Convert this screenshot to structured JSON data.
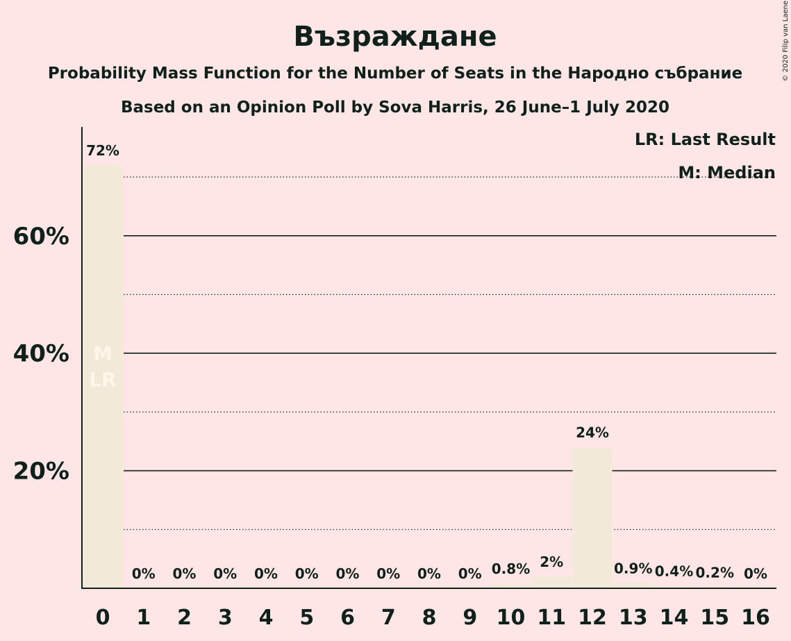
{
  "title": "Възраждане",
  "subtitle_line1": "Probability Mass Function for the Number of Seats in the Народно събрание",
  "subtitle_line2": "Based on an Opinion Poll by Sova Harris, 26 June–1 July 2020",
  "copyright": "© 2020 Filip van Laenen",
  "legend": {
    "last_result": "LR: Last Result",
    "median": "M: Median"
  },
  "colors": {
    "background": "#FFE6E6",
    "bar": "#F2E9D9",
    "text": "#0F211A",
    "marker_text": "#FFF6EA"
  },
  "chart_data": {
    "type": "bar",
    "categories": [
      "0",
      "1",
      "2",
      "3",
      "4",
      "5",
      "6",
      "7",
      "8",
      "9",
      "10",
      "11",
      "12",
      "13",
      "14",
      "15",
      "16"
    ],
    "values": [
      72,
      0,
      0,
      0,
      0,
      0,
      0,
      0,
      0,
      0,
      0.8,
      2,
      24,
      0.9,
      0.4,
      0.2,
      0
    ],
    "value_labels": [
      "72%",
      "0%",
      "0%",
      "0%",
      "0%",
      "0%",
      "0%",
      "0%",
      "0%",
      "0%",
      "0.8%",
      "2%",
      "24%",
      "0.9%",
      "0.4%",
      "0.2%",
      "0%"
    ],
    "ylim": [
      0,
      78
    ],
    "yticks": [
      20,
      40,
      60
    ],
    "ytick_labels": [
      "20%",
      "40%",
      "60%"
    ],
    "minor_gridlines": [
      10,
      30,
      50,
      70
    ],
    "grid": true,
    "legend_placement": "top-right",
    "median_seat": "0",
    "last_result_seat": "0",
    "median_marker": "M",
    "last_result_marker": "LR"
  }
}
